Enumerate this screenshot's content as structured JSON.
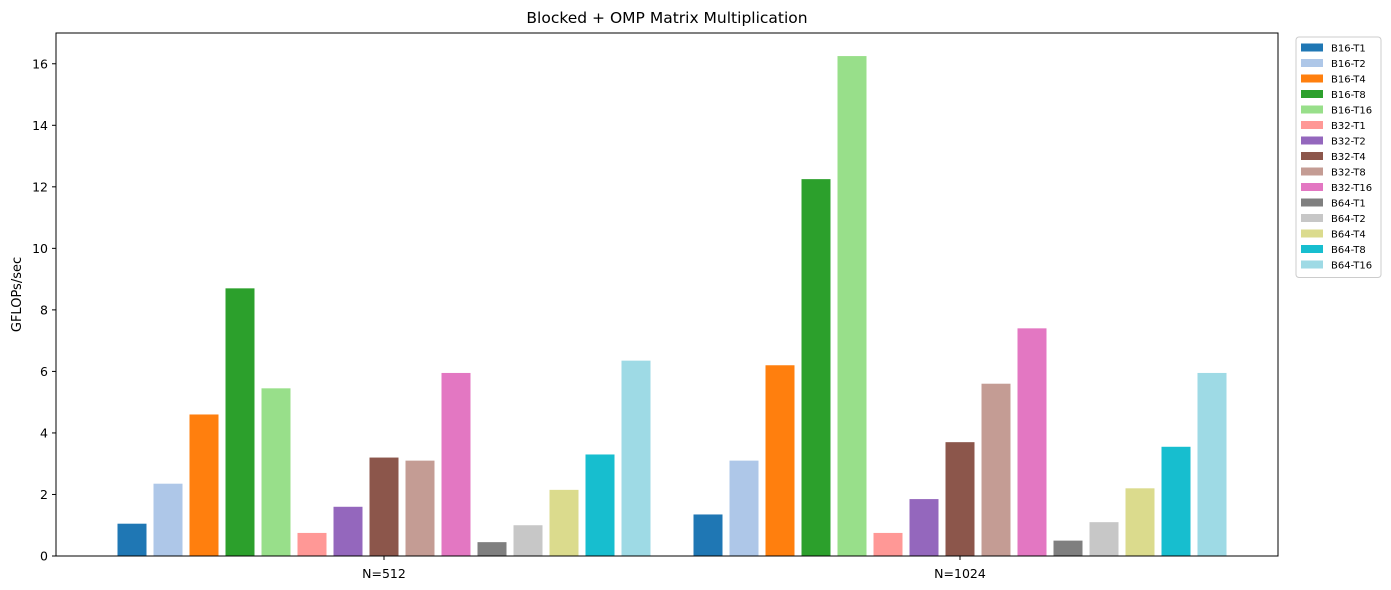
{
  "chart_data": {
    "type": "bar",
    "title": "Blocked + OMP Matrix Multiplication",
    "xlabel": "",
    "ylabel": "GFLOPs/sec",
    "ylim": [
      0,
      17
    ],
    "yticks": [
      0,
      2,
      4,
      6,
      8,
      10,
      12,
      14,
      16
    ],
    "grid": false,
    "legend_position": "outside-right",
    "categories": [
      "N=512",
      "N=1024"
    ],
    "series": [
      {
        "name": "B16-T1",
        "color": "#1f77b4",
        "values": [
          1.05,
          1.35
        ]
      },
      {
        "name": "B16-T2",
        "color": "#aec7e8",
        "values": [
          2.35,
          3.1
        ]
      },
      {
        "name": "B16-T4",
        "color": "#ff7f0e",
        "values": [
          4.6,
          6.2
        ]
      },
      {
        "name": "B16-T8",
        "color": "#2ca02c",
        "values": [
          8.7,
          12.25
        ]
      },
      {
        "name": "B16-T16",
        "color": "#98df8a",
        "values": [
          5.45,
          16.25
        ]
      },
      {
        "name": "B32-T1",
        "color": "#ff9896",
        "values": [
          0.75,
          0.75
        ]
      },
      {
        "name": "B32-T2",
        "color": "#9467bd",
        "values": [
          1.6,
          1.85
        ]
      },
      {
        "name": "B32-T4",
        "color": "#8c564b",
        "values": [
          3.2,
          3.7
        ]
      },
      {
        "name": "B32-T8",
        "color": "#c49c94",
        "values": [
          3.1,
          5.6
        ]
      },
      {
        "name": "B32-T16",
        "color": "#e377c2",
        "values": [
          5.95,
          7.4
        ]
      },
      {
        "name": "B64-T1",
        "color": "#7f7f7f",
        "values": [
          0.45,
          0.5
        ]
      },
      {
        "name": "B64-T2",
        "color": "#c7c7c7",
        "values": [
          1.0,
          1.1
        ]
      },
      {
        "name": "B64-T4",
        "color": "#dbdb8d",
        "values": [
          2.15,
          2.2
        ]
      },
      {
        "name": "B64-T8",
        "color": "#17becf",
        "values": [
          3.3,
          3.55
        ]
      },
      {
        "name": "B64-T16",
        "color": "#9edae5",
        "values": [
          6.35,
          5.95
        ]
      }
    ]
  }
}
